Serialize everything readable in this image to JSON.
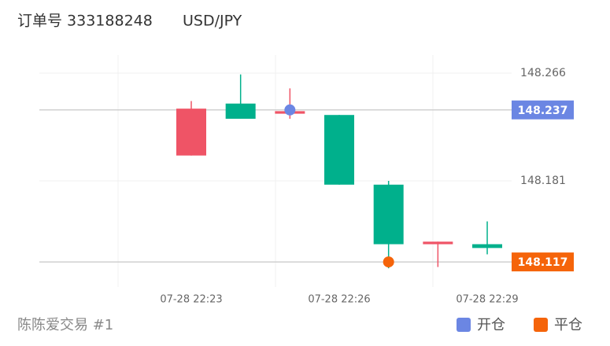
{
  "header": {
    "order": "订单号 333188248",
    "symbol": "USD/JPY"
  },
  "footer": {
    "account": "陈陈爱交易 #1"
  },
  "chart_data": {
    "type": "candlestick",
    "categories": [
      "07-28 22:23",
      null,
      null,
      "07-28 22:26",
      null,
      null,
      "07-28 22:29"
    ],
    "open": [
      148.201,
      148.242,
      148.234,
      148.233,
      148.178,
      148.131,
      148.131
    ],
    "high": [
      148.244,
      148.265,
      148.254,
      148.233,
      148.181,
      148.133,
      148.149
    ],
    "low": [
      148.201,
      148.23,
      148.23,
      148.178,
      148.112,
      148.113,
      148.123
    ],
    "close": [
      148.238,
      148.23,
      148.236,
      148.178,
      148.131,
      148.133,
      148.128
    ],
    "up_color": "#ef5466",
    "down_color": "#00b08c",
    "ylim": [
      148.0972,
      148.2803
    ],
    "yticks": [
      148.266,
      148.181
    ],
    "grid": true,
    "series": [
      {
        "name": "开仓",
        "color": "#6b86e3",
        "values": [
          null,
          null,
          148.237,
          null,
          null,
          null,
          null
        ]
      },
      {
        "name": "平仓",
        "color": "#f5640a",
        "values": [
          null,
          null,
          null,
          null,
          148.117,
          null,
          null
        ]
      }
    ]
  }
}
